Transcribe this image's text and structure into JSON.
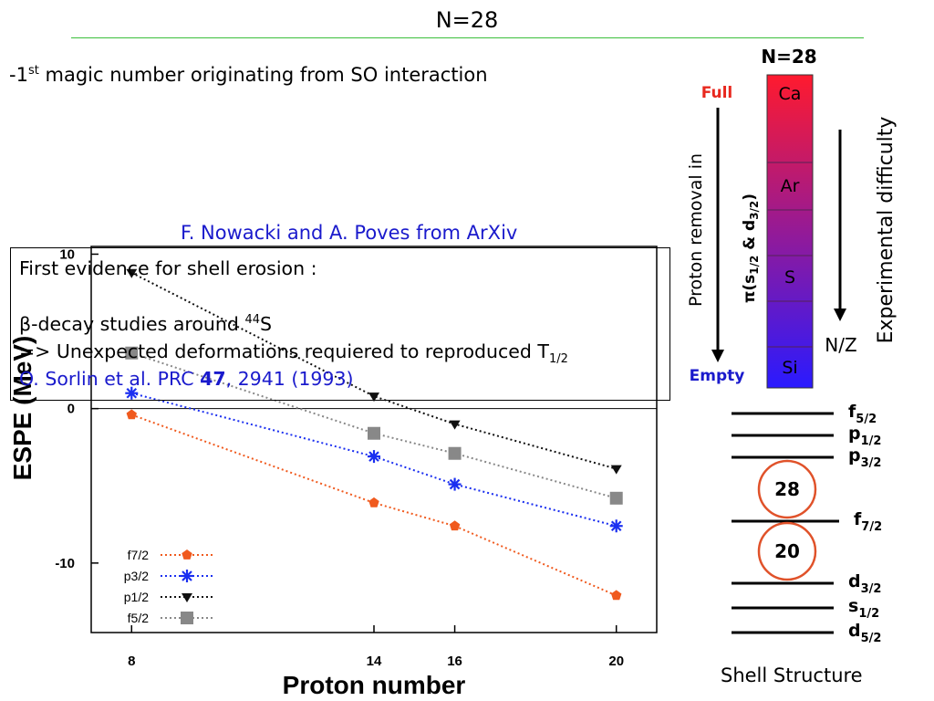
{
  "slide": {
    "title": "N=28",
    "bullet_prefix": "-1",
    "bullet_sup": "st",
    "bullet_text": " magic number originating from SO interaction",
    "source": "F. Nowacki and A. Poves from ArXiv"
  },
  "evidence_box": {
    "line1": "First evidence for shell erosion :",
    "line2_symbol": "β",
    "line2_text": "-decay studies around ",
    "line2_sup": "44",
    "line2_end": "S",
    "line3_text": "=> Unexpected deformations requiered to reproduced  T",
    "line3_sub": "1/2",
    "line4_pre": "O. Sorlin et al. PRC ",
    "line4_bold": "47",
    "line4_post": ", 2941 (1993)"
  },
  "chart_data": {
    "type": "line",
    "xlabel": "Proton number",
    "ylabel": "ESPE (MeV)",
    "xlim": [
      7,
      21
    ],
    "ylim": [
      -14.5,
      10.5
    ],
    "x_ticks": [
      8,
      14,
      16,
      20
    ],
    "y_ticks": [
      10,
      0,
      -10
    ],
    "x_tick_labels": [
      "8",
      "14",
      "16",
      "20"
    ],
    "y_tick_labels": [
      "10",
      "0",
      "-10"
    ],
    "legend_position": "bottom-left",
    "series": [
      {
        "name": "f7/2",
        "color": "#f05a1e",
        "marker": "pentagon",
        "points": [
          [
            8,
            -0.4
          ],
          [
            14,
            -6.1
          ],
          [
            16,
            -7.6
          ],
          [
            20,
            -12.1
          ]
        ]
      },
      {
        "name": "p3/2",
        "color": "#1b2ff0",
        "marker": "star",
        "points": [
          [
            8,
            1.0
          ],
          [
            14,
            -3.1
          ],
          [
            16,
            -4.9
          ],
          [
            20,
            -7.6
          ]
        ]
      },
      {
        "name": "p1/2",
        "color": "#111111",
        "marker": "triangle",
        "points": [
          [
            8,
            8.8
          ],
          [
            14,
            0.8
          ],
          [
            16,
            -1.0
          ],
          [
            20,
            -3.9
          ]
        ]
      },
      {
        "name": "f5/2",
        "color": "#888888",
        "marker": "square",
        "points": [
          [
            8,
            3.6
          ],
          [
            14,
            -1.6
          ],
          [
            16,
            -2.9
          ],
          [
            20,
            -5.8
          ]
        ]
      }
    ]
  },
  "right_panel": {
    "header": "N=28",
    "full_label": "Full",
    "empty_label": "Empty",
    "proton_removal_label": "Proton removal in",
    "orbital_label_pi": "π(s",
    "orbital_sub1": "1/2",
    "orbital_amp": " & d",
    "orbital_sub2": "3/2",
    "orbital_close": ")",
    "nz_label": "N/Z",
    "difficulty_label": "Experimental difficulty",
    "elements": [
      "Ca",
      "Ar",
      "S",
      "Si"
    ],
    "gradient_top": "#ff1a2e",
    "gradient_bottom": "#2a1aff",
    "levels": [
      {
        "orbital": "f",
        "sub": "5/2"
      },
      {
        "orbital": "p",
        "sub": "1/2"
      },
      {
        "orbital": "p",
        "sub": "3/2"
      },
      {
        "orbital": "f",
        "sub": "7/2"
      },
      {
        "orbital": "d",
        "sub": "3/2"
      },
      {
        "orbital": "s",
        "sub": "1/2"
      },
      {
        "orbital": "d",
        "sub": "5/2"
      }
    ],
    "magic_numbers": [
      "28",
      "20"
    ],
    "shell_title": "Shell Structure"
  }
}
